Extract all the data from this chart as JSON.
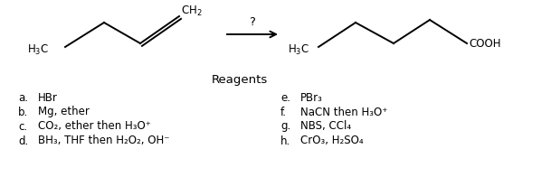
{
  "background_color": "#ffffff",
  "title_text": "Reagents",
  "reagents_left": [
    [
      "a.",
      "HBr"
    ],
    [
      "b.",
      "Mg, ether"
    ],
    [
      "c.",
      "CO₂, ether then H₃O⁺"
    ],
    [
      "d.",
      "BH₃, THF then H₂O₂, OH⁻"
    ]
  ],
  "reagents_right": [
    [
      "e.",
      "PBr₃"
    ],
    [
      "f.",
      "NaCN then H₃O⁺"
    ],
    [
      "g.",
      "NBS, CCl₄"
    ],
    [
      "h.",
      "CrO₃, H₂SO₄"
    ]
  ],
  "fontsize": 8.5,
  "title_fontsize": 9.5
}
